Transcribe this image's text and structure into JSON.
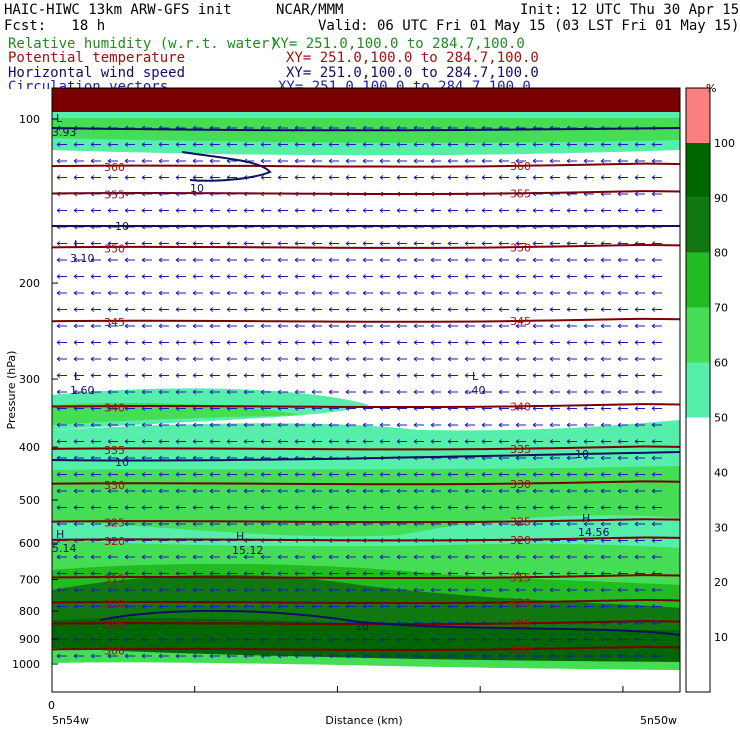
{
  "header": {
    "title_left": "HAIC-HIWC 13km ARW-GFS init",
    "center": "NCAR/MMM",
    "init": "Init: 12 UTC Thu 30 Apr 15",
    "fcst": "Fcst:   18 h",
    "valid": "Valid: 06 UTC Fri 01 May 15 (03 LST Fri 01 May 15)"
  },
  "fields": [
    {
      "name": "Relative humidity (w.r.t. water)",
      "xy": "XY= 251.0,100.0 to 284.7,100.0",
      "color": "#1e8c1e"
    },
    {
      "name": "Potential temperature",
      "xy": "XY= 251.0,100.0 to 284.7,100.0",
      "color": "#a01010"
    },
    {
      "name": "Horizontal wind speed",
      "xy": "XY= 251.0,100.0 to 284.7,100.0",
      "color": "#101060"
    },
    {
      "name": "Circulation vectors",
      "xy": "XY= 251.0,100.0 to 284.7,100.0",
      "color": "#1e1eb4"
    }
  ],
  "axes": {
    "ylabel": "Pressure (hPa)",
    "xlabel": "Distance (km)",
    "x_left": "5n54w",
    "x_right": "5n50w",
    "x_zero": "0",
    "y_ticks": [
      "100",
      "200",
      "300",
      "400",
      "500",
      "600",
      "700",
      "800",
      "900",
      "1000"
    ]
  },
  "colorbar": {
    "unit": "%",
    "labels": [
      "10",
      "20",
      "30",
      "40",
      "50",
      "60",
      "70",
      "80",
      "90",
      "100"
    ],
    "colors": [
      "#ffffff",
      "#ffffff",
      "#ffffff",
      "#ffffff",
      "#ffffff",
      "#55eeaa",
      "#44dd55",
      "#22bb22",
      "#117711",
      "#006600",
      "#fa8080"
    ]
  },
  "chart_data": {
    "type": "heatmap",
    "title": "HAIC-HIWC 13km ARW-GFS init",
    "xlabel": "Distance (km)",
    "ylabel": "Pressure (hPa)",
    "ylim": [
      1050,
      80
    ],
    "y_scale": "log-pressure",
    "x_range_labels": [
      "5n54w",
      "5n50w"
    ],
    "theta_contours": [
      {
        "label": "360",
        "p": 122
      },
      {
        "label": "355",
        "p": 137
      },
      {
        "label": "350",
        "p": 172
      },
      {
        "label": "345",
        "p": 235
      },
      {
        "label": "340",
        "p": 337
      },
      {
        "label": "335",
        "p": 403
      },
      {
        "label": "330",
        "p": 467
      },
      {
        "label": "325",
        "p": 548
      },
      {
        "label": "320",
        "p": 592
      },
      {
        "label": "315",
        "p": 694
      },
      {
        "label": "310",
        "p": 771
      },
      {
        "label": "305",
        "p": 843
      },
      {
        "label": "300",
        "p": 940
      }
    ],
    "wind_speed_contour_labels": [
      "10",
      "10",
      "10",
      "10",
      "10"
    ],
    "extrema_labels": [
      {
        "kind": "L",
        "value": "3.93"
      },
      {
        "kind": "L",
        "value": "3.10"
      },
      {
        "kind": "L",
        "value": "1.60"
      },
      {
        "kind": "L",
        "value": ".40"
      },
      {
        "kind": "H",
        "value": "5.14"
      },
      {
        "kind": "H",
        "value": "15.12"
      },
      {
        "kind": "H",
        "value": "14.56"
      }
    ]
  }
}
